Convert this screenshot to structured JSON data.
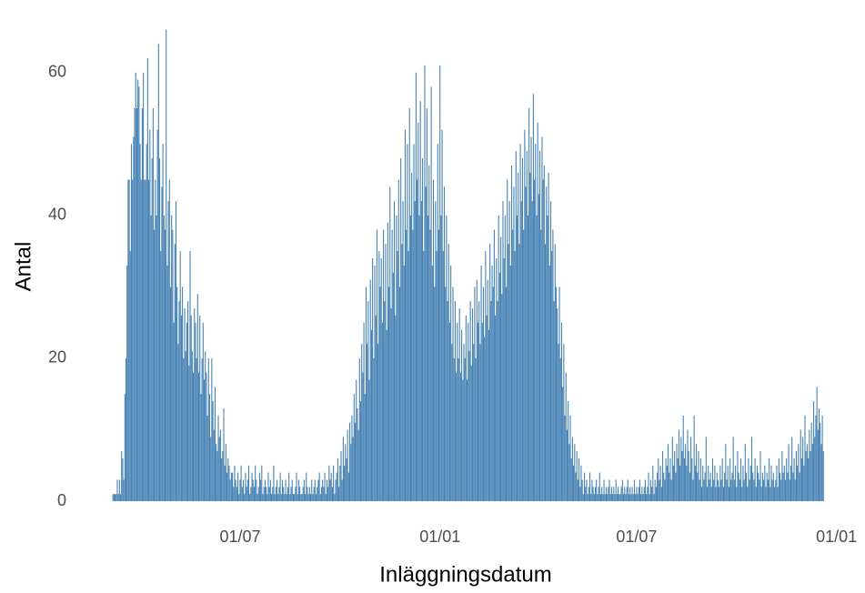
{
  "chart_data": {
    "type": "bar",
    "x_label": "Inläggningsdatum",
    "y_label": "Antal",
    "color": "#4682b4",
    "grid": true,
    "xlim": [
      33,
      748
    ],
    "ylim": [
      -3.3,
      68.5
    ],
    "xticks": [
      {
        "value": 182,
        "label": "01/07"
      },
      {
        "value": 366,
        "label": "01/01"
      },
      {
        "value": 547,
        "label": "01/07"
      },
      {
        "value": 731,
        "label": "01/01"
      }
    ],
    "yticks": [
      0,
      20,
      40,
      60
    ],
    "x": [
      65,
      66,
      67,
      68,
      69,
      70,
      71,
      72,
      73,
      74,
      75,
      76,
      77,
      78,
      79,
      80,
      81,
      82,
      83,
      84,
      85,
      86,
      87,
      88,
      89,
      90,
      91,
      92,
      93,
      94,
      95,
      96,
      97,
      98,
      99,
      100,
      101,
      102,
      103,
      104,
      105,
      106,
      107,
      108,
      109,
      110,
      111,
      112,
      113,
      114,
      115,
      116,
      117,
      118,
      119,
      120,
      121,
      122,
      123,
      124,
      125,
      126,
      127,
      128,
      129,
      130,
      131,
      132,
      133,
      134,
      135,
      136,
      137,
      138,
      139,
      140,
      141,
      142,
      143,
      144,
      145,
      146,
      147,
      148,
      149,
      150,
      151,
      152,
      153,
      154,
      155,
      156,
      157,
      158,
      159,
      160,
      161,
      162,
      163,
      164,
      165,
      166,
      167,
      168,
      169,
      170,
      171,
      172,
      173,
      174,
      175,
      176,
      177,
      178,
      179,
      180,
      181,
      182,
      183,
      184,
      185,
      186,
      187,
      188,
      189,
      190,
      191,
      192,
      193,
      194,
      195,
      196,
      197,
      198,
      199,
      200,
      201,
      202,
      203,
      204,
      205,
      206,
      207,
      208,
      209,
      210,
      211,
      212,
      213,
      214,
      215,
      216,
      217,
      218,
      219,
      220,
      221,
      222,
      223,
      224,
      225,
      226,
      227,
      228,
      229,
      230,
      231,
      232,
      233,
      234,
      235,
      236,
      237,
      238,
      239,
      240,
      241,
      242,
      243,
      244,
      245,
      246,
      247,
      248,
      249,
      250,
      251,
      252,
      253,
      254,
      255,
      256,
      257,
      258,
      259,
      260,
      261,
      262,
      263,
      264,
      265,
      266,
      267,
      268,
      269,
      270,
      271,
      272,
      273,
      274,
      275,
      276,
      277,
      278,
      279,
      280,
      281,
      282,
      283,
      284,
      285,
      286,
      287,
      288,
      289,
      290,
      291,
      292,
      293,
      294,
      295,
      296,
      297,
      298,
      299,
      300,
      301,
      302,
      303,
      304,
      305,
      306,
      307,
      308,
      309,
      310,
      311,
      312,
      313,
      314,
      315,
      316,
      317,
      318,
      319,
      320,
      321,
      322,
      323,
      324,
      325,
      326,
      327,
      328,
      329,
      330,
      331,
      332,
      333,
      334,
      335,
      336,
      337,
      338,
      339,
      340,
      341,
      342,
      343,
      344,
      345,
      346,
      347,
      348,
      349,
      350,
      351,
      352,
      353,
      354,
      355,
      356,
      357,
      358,
      359,
      360,
      361,
      362,
      363,
      364,
      365,
      366,
      367,
      368,
      369,
      370,
      371,
      372,
      373,
      374,
      375,
      376,
      377,
      378,
      379,
      380,
      381,
      382,
      383,
      384,
      385,
      386,
      387,
      388,
      389,
      390,
      391,
      392,
      393,
      394,
      395,
      396,
      397,
      398,
      399,
      400,
      401,
      402,
      403,
      404,
      405,
      406,
      407,
      408,
      409,
      410,
      411,
      412,
      413,
      414,
      415,
      416,
      417,
      418,
      419,
      420,
      421,
      422,
      423,
      424,
      425,
      426,
      427,
      428,
      429,
      430,
      431,
      432,
      433,
      434,
      435,
      436,
      437,
      438,
      439,
      440,
      441,
      442,
      443,
      444,
      445,
      446,
      447,
      448,
      449,
      450,
      451,
      452,
      453,
      454,
      455,
      456,
      457,
      458,
      459,
      460,
      461,
      462,
      463,
      464,
      465,
      466,
      467,
      468,
      469,
      470,
      471,
      472,
      473,
      474,
      475,
      476,
      477,
      478,
      479,
      480,
      481,
      482,
      483,
      484,
      485,
      486,
      487,
      488,
      489,
      490,
      491,
      492,
      493,
      494,
      495,
      496,
      497,
      498,
      499,
      500,
      501,
      502,
      503,
      504,
      505,
      506,
      507,
      508,
      509,
      510,
      511,
      512,
      513,
      514,
      515,
      516,
      517,
      518,
      519,
      520,
      521,
      522,
      523,
      524,
      525,
      526,
      527,
      528,
      529,
      530,
      531,
      532,
      533,
      534,
      535,
      536,
      537,
      538,
      539,
      540,
      541,
      542,
      543,
      544,
      545,
      546,
      547,
      548,
      549,
      550,
      551,
      552,
      553,
      554,
      555,
      556,
      557,
      558,
      559,
      560,
      561,
      562,
      563,
      564,
      565,
      566,
      567,
      568,
      569,
      570,
      571,
      572,
      573,
      574,
      575,
      576,
      577,
      578,
      579,
      580,
      581,
      582,
      583,
      584,
      585,
      586,
      587,
      588,
      589,
      590,
      591,
      592,
      593,
      594,
      595,
      596,
      597,
      598,
      599,
      600,
      601,
      602,
      603,
      604,
      605,
      606,
      607,
      608,
      609,
      610,
      611,
      612,
      613,
      614,
      615,
      616,
      617,
      618,
      619,
      620,
      621,
      622,
      623,
      624,
      625,
      626,
      627,
      628,
      629,
      630,
      631,
      632,
      633,
      634,
      635,
      636,
      637,
      638,
      639,
      640,
      641,
      642,
      643,
      644,
      645,
      646,
      647,
      648,
      649,
      650,
      651,
      652,
      653,
      654,
      655,
      656,
      657,
      658,
      659,
      660,
      661,
      662,
      663,
      664,
      665,
      666,
      667,
      668,
      669,
      670,
      671,
      672,
      673,
      674,
      675,
      676,
      677,
      678,
      679,
      680,
      681,
      682,
      683,
      684,
      685,
      686,
      687,
      688,
      689,
      690,
      691,
      692,
      693,
      694,
      695,
      696,
      697,
      698,
      699,
      700,
      701,
      702,
      703,
      704,
      705,
      706,
      707,
      708,
      709,
      710,
      711,
      712,
      713,
      714,
      715,
      716,
      717,
      718,
      719
    ],
    "values": [
      1,
      1,
      1,
      1,
      3,
      1,
      3,
      1,
      7,
      6,
      3,
      15,
      20,
      33,
      45,
      45,
      35,
      50,
      45,
      51,
      55,
      60,
      55,
      59,
      58,
      50,
      45,
      55,
      60,
      45,
      45,
      50,
      62,
      45,
      52,
      40,
      48,
      55,
      38,
      45,
      40,
      52,
      64,
      48,
      35,
      44,
      50,
      40,
      38,
      66,
      33,
      42,
      45,
      30,
      40,
      38,
      25,
      36,
      42,
      30,
      22,
      28,
      35,
      26,
      30,
      20,
      27,
      21,
      25,
      28,
      19,
      35,
      26,
      21,
      18,
      27,
      25,
      20,
      29,
      18,
      26,
      15,
      20,
      25,
      17,
      21,
      18,
      12,
      20,
      15,
      9,
      20,
      14,
      10,
      16,
      8,
      7,
      12,
      9,
      10,
      6,
      7,
      13,
      5,
      8,
      4,
      6,
      5,
      3,
      4,
      4,
      2,
      5,
      3,
      2,
      4,
      1,
      3,
      5,
      2,
      3,
      1,
      4,
      2,
      3,
      5,
      1,
      2,
      4,
      3,
      2,
      5,
      3,
      1,
      2,
      4,
      3,
      5,
      1,
      2,
      3,
      2,
      1,
      4,
      2,
      3,
      1,
      2,
      5,
      1,
      2,
      3,
      1,
      2,
      4,
      1,
      3,
      2,
      1,
      3,
      1,
      2,
      4,
      1,
      2,
      3,
      1,
      1,
      2,
      4,
      1,
      3,
      2,
      1,
      1,
      2,
      3,
      1,
      4,
      2,
      1,
      2,
      1,
      3,
      1,
      2,
      3,
      1,
      2,
      3,
      4,
      1,
      2,
      3,
      2,
      4,
      1,
      3,
      2,
      5,
      3,
      4,
      2,
      5,
      1,
      3,
      4,
      6,
      2,
      5,
      7,
      3,
      9,
      5,
      8,
      6,
      10,
      4,
      11,
      8,
      12,
      9,
      15,
      11,
      17,
      13,
      10,
      20,
      14,
      22,
      18,
      25,
      15,
      30,
      22,
      28,
      17,
      31,
      24,
      34,
      20,
      33,
      26,
      38,
      22,
      35,
      30,
      34,
      25,
      38,
      28,
      36,
      24,
      39,
      30,
      44,
      27,
      38,
      32,
      42,
      26,
      40,
      35,
      45,
      30,
      48,
      36,
      42,
      33,
      52,
      38,
      50,
      35,
      55,
      40,
      46,
      38,
      50,
      42,
      60,
      45,
      53,
      40,
      56,
      42,
      48,
      35,
      61,
      44,
      55,
      40,
      47,
      38,
      58,
      33,
      45,
      30,
      42,
      35,
      50,
      38,
      61,
      40,
      52,
      35,
      44,
      30,
      40,
      28,
      36,
      25,
      33,
      22,
      30,
      20,
      28,
      18,
      25,
      20,
      27,
      18,
      24,
      17,
      22,
      20,
      26,
      17,
      25,
      21,
      28,
      19,
      27,
      22,
      30,
      20,
      31,
      25,
      28,
      22,
      33,
      25,
      30,
      23,
      35,
      26,
      31,
      24,
      36,
      28,
      33,
      30,
      38,
      26,
      34,
      28,
      40,
      32,
      37,
      29,
      42,
      34,
      40,
      30,
      45,
      36,
      42,
      33,
      47,
      38,
      44,
      35,
      49,
      40,
      46,
      36,
      50,
      42,
      48,
      38,
      52,
      44,
      49,
      40,
      55,
      46,
      51,
      42,
      57,
      45,
      50,
      40,
      53,
      43,
      49,
      38,
      51,
      45,
      47,
      36,
      44,
      40,
      46,
      33,
      42,
      35,
      38,
      28,
      36,
      30,
      27,
      22,
      30,
      20,
      25,
      16,
      22,
      12,
      18,
      10,
      14,
      8,
      12,
      6,
      9,
      5,
      8,
      4,
      7,
      3,
      6,
      2,
      5,
      3,
      1,
      4,
      2,
      3,
      1,
      2,
      4,
      1,
      3,
      2,
      1,
      2,
      3,
      1,
      2,
      4,
      1,
      2,
      1,
      3,
      1,
      2,
      1,
      2,
      3,
      1,
      2,
      1,
      2,
      1,
      3,
      1,
      2,
      1,
      1,
      2,
      3,
      1,
      2,
      1,
      2,
      3,
      1,
      2,
      1,
      2,
      1,
      3,
      1,
      2,
      1,
      2,
      3,
      1,
      2,
      1,
      2,
      3,
      1,
      2,
      4,
      1,
      3,
      2,
      5,
      1,
      3,
      2,
      4,
      6,
      3,
      5,
      2,
      7,
      4,
      3,
      6,
      5,
      8,
      4,
      6,
      3,
      9,
      5,
      7,
      4,
      8,
      6,
      10,
      5,
      9,
      7,
      12,
      6,
      8,
      5,
      10,
      7,
      4,
      9,
      6,
      3,
      12,
      5,
      8,
      4,
      7,
      3,
      6,
      2,
      5,
      3,
      4,
      9,
      2,
      5,
      3,
      4,
      2,
      6,
      3,
      5,
      2,
      4,
      3,
      2,
      5,
      3,
      6,
      2,
      4,
      8,
      3,
      5,
      2,
      6,
      3,
      4,
      9,
      3,
      5,
      2,
      7,
      4,
      3,
      6,
      2,
      5,
      3,
      8,
      4,
      2,
      6,
      3,
      5,
      9,
      4,
      3,
      6,
      2,
      5,
      4,
      3,
      7,
      2,
      4,
      3,
      5,
      2,
      4,
      3,
      6,
      2,
      5,
      3,
      4,
      2,
      3,
      5,
      2,
      6,
      4,
      3,
      7,
      4,
      5,
      3,
      6,
      4,
      8,
      3,
      5,
      9,
      4,
      6,
      3,
      7,
      5,
      8,
      4,
      10,
      6,
      9,
      5,
      12,
      7,
      8,
      6,
      10,
      7,
      11,
      8,
      14,
      9,
      12,
      16,
      10,
      13,
      11,
      8,
      12,
      7
    ]
  }
}
